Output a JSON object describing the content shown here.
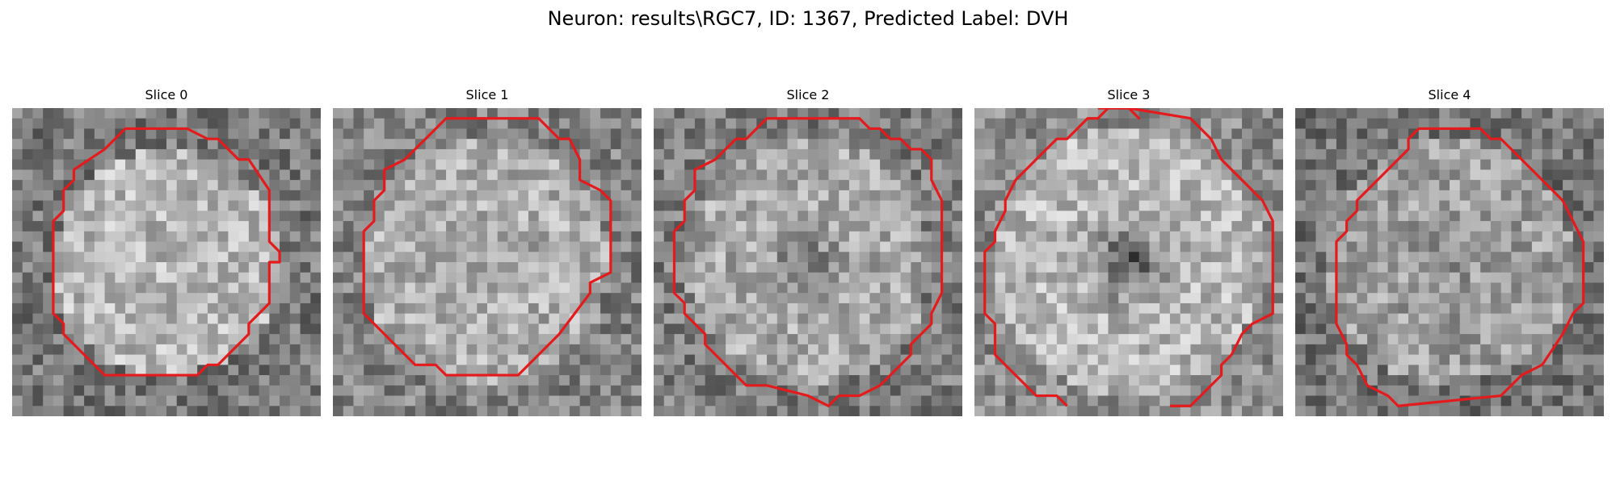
{
  "figure": {
    "title": "Neuron: results\\RGC7, ID: 1367, Predicted Label: DVH"
  },
  "slices": [
    {
      "label": "Slice 0",
      "image": "grayscale noisy microscopy patch, bright roughly circular cell body",
      "contour": "red octagonal outline"
    },
    {
      "label": "Slice 1",
      "image": "grayscale noisy microscopy patch, bright textured cell body",
      "contour": "red octagonal outline"
    },
    {
      "label": "Slice 2",
      "image": "grayscale noisy microscopy patch, cell body with darker center",
      "contour": "red octagonal outline"
    },
    {
      "label": "Slice 3",
      "image": "grayscale noisy microscopy patch, bright ring with dark central nucleus",
      "contour": "red outline, open at top and bottom edges"
    },
    {
      "label": "Slice 4",
      "image": "grayscale noisy microscopy patch, faint cell body with dark surrounding",
      "contour": "red octagonal outline"
    }
  ],
  "colors": {
    "contour": "#e41a1c",
    "background": "#ffffff"
  }
}
